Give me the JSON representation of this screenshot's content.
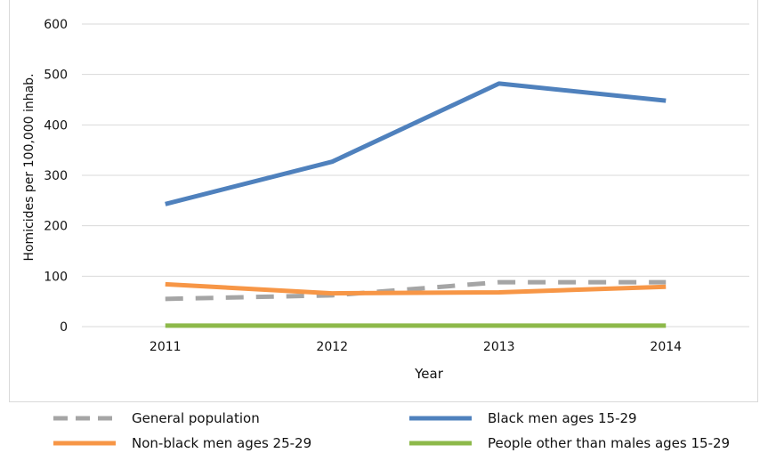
{
  "chart_data": {
    "type": "line",
    "title": "",
    "xlabel": "Year",
    "ylabel": "Homicides per 100,000 inhab.",
    "categories": [
      "2011",
      "2012",
      "2013",
      "2014"
    ],
    "ylim": [
      0,
      600
    ],
    "yticks": [
      "0",
      "100",
      "200",
      "300",
      "400",
      "500",
      "600"
    ],
    "grid": true,
    "legend_position": "bottom",
    "series": [
      {
        "name": "General population",
        "values": [
          55,
          62,
          88,
          88
        ],
        "color": "#a5a5a5",
        "dashed": true
      },
      {
        "name": "Black men ages 15-29",
        "values": [
          243,
          327,
          482,
          448
        ],
        "color": "#4f81bd",
        "dashed": false
      },
      {
        "name": "Non-black men ages 25-29",
        "values": [
          84,
          66,
          68,
          79
        ],
        "color": "#f79646",
        "dashed": false
      },
      {
        "name": "People other than males ages 15-29",
        "values": [
          2,
          2,
          2,
          2
        ],
        "color": "#8db94a",
        "dashed": false
      }
    ]
  }
}
